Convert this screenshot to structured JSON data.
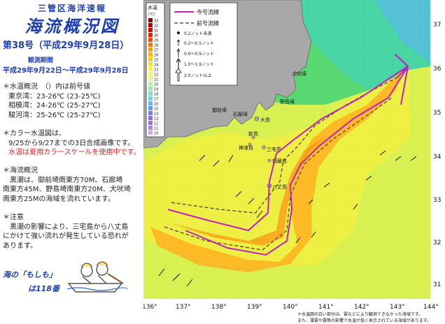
{
  "header": {
    "office": "三管区海洋速報",
    "title": "海流概況図",
    "issue": "第38号（平成29年9月28日）",
    "observation_label": "観測期間",
    "observation_period": "平成29年9月22日〜平成29年9月28日"
  },
  "water_temp": {
    "heading": "＊水温概況　（）内は前号値",
    "rows": [
      "東京湾：23-26℃ (23-25℃)",
      "相模湾：24-26℃ (25-27℃)",
      "駿河湾：25-26℃ (25-27℃)"
    ]
  },
  "color_map": {
    "heading": "＊カラー水温図は、",
    "line1": "9/25から9/27までの3日合成画像です。",
    "note_red": "水温は夏用カラースケールを使用中です。"
  },
  "current": {
    "heading": "＊海流概況",
    "body": [
      "　黒潮は、御前埼南東方70M、石廊埼",
      "南東方45M、野島埼南東方20M、犬吠埼",
      "南東方25Mの海域を流れています。"
    ]
  },
  "caution": {
    "heading": "＊注意",
    "body": [
      "　黒潮の影響により、三宅島から八丈島",
      "にかけて強い流れが発生している恐れが",
      "あります。"
    ]
  },
  "hotline": {
    "line1": "海の「もしも」",
    "line2": "は118番"
  },
  "legend": {
    "current_line": "今号流線",
    "previous_line": "前号流線",
    "temp_title": "水温",
    "temp_unit": "(℃)",
    "temp_scale": [
      "33",
      "32",
      "31",
      "30",
      "29",
      "28",
      "27",
      "26",
      "25",
      "24",
      "23",
      "22",
      "21",
      "20",
      "19",
      "18",
      "17",
      "16",
      "15",
      "14",
      "13",
      "12",
      "11",
      "10"
    ],
    "temp_colors": [
      "#8a0000",
      "#b00000",
      "#d80000",
      "#f01c00",
      "#ff4800",
      "#ff7400",
      "#ff9c00",
      "#ffb400",
      "#ffcc10",
      "#ffe030",
      "#fff040",
      "#f0f860",
      "#d8f890",
      "#b8f0a0",
      "#98e8b0",
      "#80e0c8",
      "#70d0e0",
      "#60b8f0",
      "#6098f0",
      "#7080e8",
      "#8870d8",
      "#a070d0",
      "#c080d8",
      "#e0a0e8"
    ],
    "speed": [
      "0.2ノット未満",
      "0.2〜0.5ノット",
      "0.6〜0.9ノット",
      "1.0〜1.9ノット",
      "2.0ノット以上"
    ],
    "current_color": "#c020c0"
  },
  "map": {
    "lon_labels": [
      "136°",
      "137°",
      "138°",
      "139°",
      "140°",
      "141°",
      "142°",
      "143°",
      "144°"
    ],
    "lat_labels": [
      "37",
      "36",
      "35",
      "34",
      "33",
      "32",
      "31"
    ],
    "places": [
      "犬吠埼",
      "野島埼",
      "石廊埼",
      "御前埼",
      "大島",
      "新島",
      "神津島",
      "三宅島",
      "御蔵島",
      "八丈島"
    ],
    "footnote": [
      "＊水温図の白い部分は、雲などにより観測できなかった海域です。",
      "また、薄雲や霧等の影響で水温が低く表示されている海域があります。"
    ]
  }
}
